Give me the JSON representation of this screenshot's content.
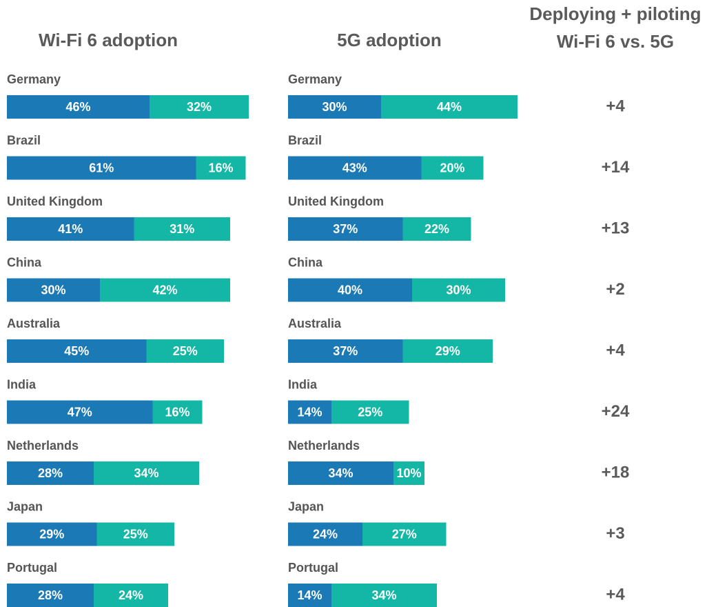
{
  "chart_data": [
    {
      "type": "stacked-bar-horizontal",
      "title": "Wi-Fi 6 adoption",
      "categories": [
        "Germany",
        "Brazil",
        "United Kingdom",
        "China",
        "Australia",
        "India",
        "Netherlands",
        "Japan",
        "Portugal"
      ],
      "series": [
        {
          "color": "#1b79b5",
          "values": [
            46,
            61,
            41,
            30,
            45,
            47,
            28,
            29,
            28
          ],
          "value_labels": [
            "46%",
            "61%",
            "41%",
            "30%",
            "45%",
            "47%",
            "28%",
            "29%",
            "28%"
          ]
        },
        {
          "color": "#14b7a5",
          "values": [
            32,
            16,
            31,
            42,
            25,
            16,
            34,
            25,
            24
          ],
          "value_labels": [
            "32%",
            "16%",
            "31%",
            "42%",
            "25%",
            "16%",
            "34%",
            "25%",
            "24%"
          ]
        }
      ]
    },
    {
      "type": "stacked-bar-horizontal",
      "title": "5G adoption",
      "categories": [
        "Germany",
        "Brazil",
        "United Kingdom",
        "China",
        "Australia",
        "India",
        "Netherlands",
        "Japan",
        "Portugal"
      ],
      "series": [
        {
          "color": "#1b79b5",
          "values": [
            30,
            43,
            37,
            40,
            37,
            14,
            34,
            24,
            14
          ],
          "value_labels": [
            "30%",
            "43%",
            "37%",
            "40%",
            "37%",
            "14%",
            "34%",
            "24%",
            "14%"
          ]
        },
        {
          "color": "#14b7a5",
          "values": [
            44,
            20,
            22,
            30,
            29,
            25,
            10,
            27,
            34
          ],
          "value_labels": [
            "44%",
            "20%",
            "22%",
            "30%",
            "29%",
            "25%",
            "10%",
            "27%",
            "34%"
          ]
        }
      ]
    }
  ],
  "difference": {
    "title": [
      "Deploying + piloting",
      "Wi-Fi 6 vs. 5G"
    ],
    "labels": [
      "+4",
      "+14",
      "+13",
      "+2",
      "+4",
      "+24",
      "+18",
      "+3",
      "+4"
    ]
  }
}
